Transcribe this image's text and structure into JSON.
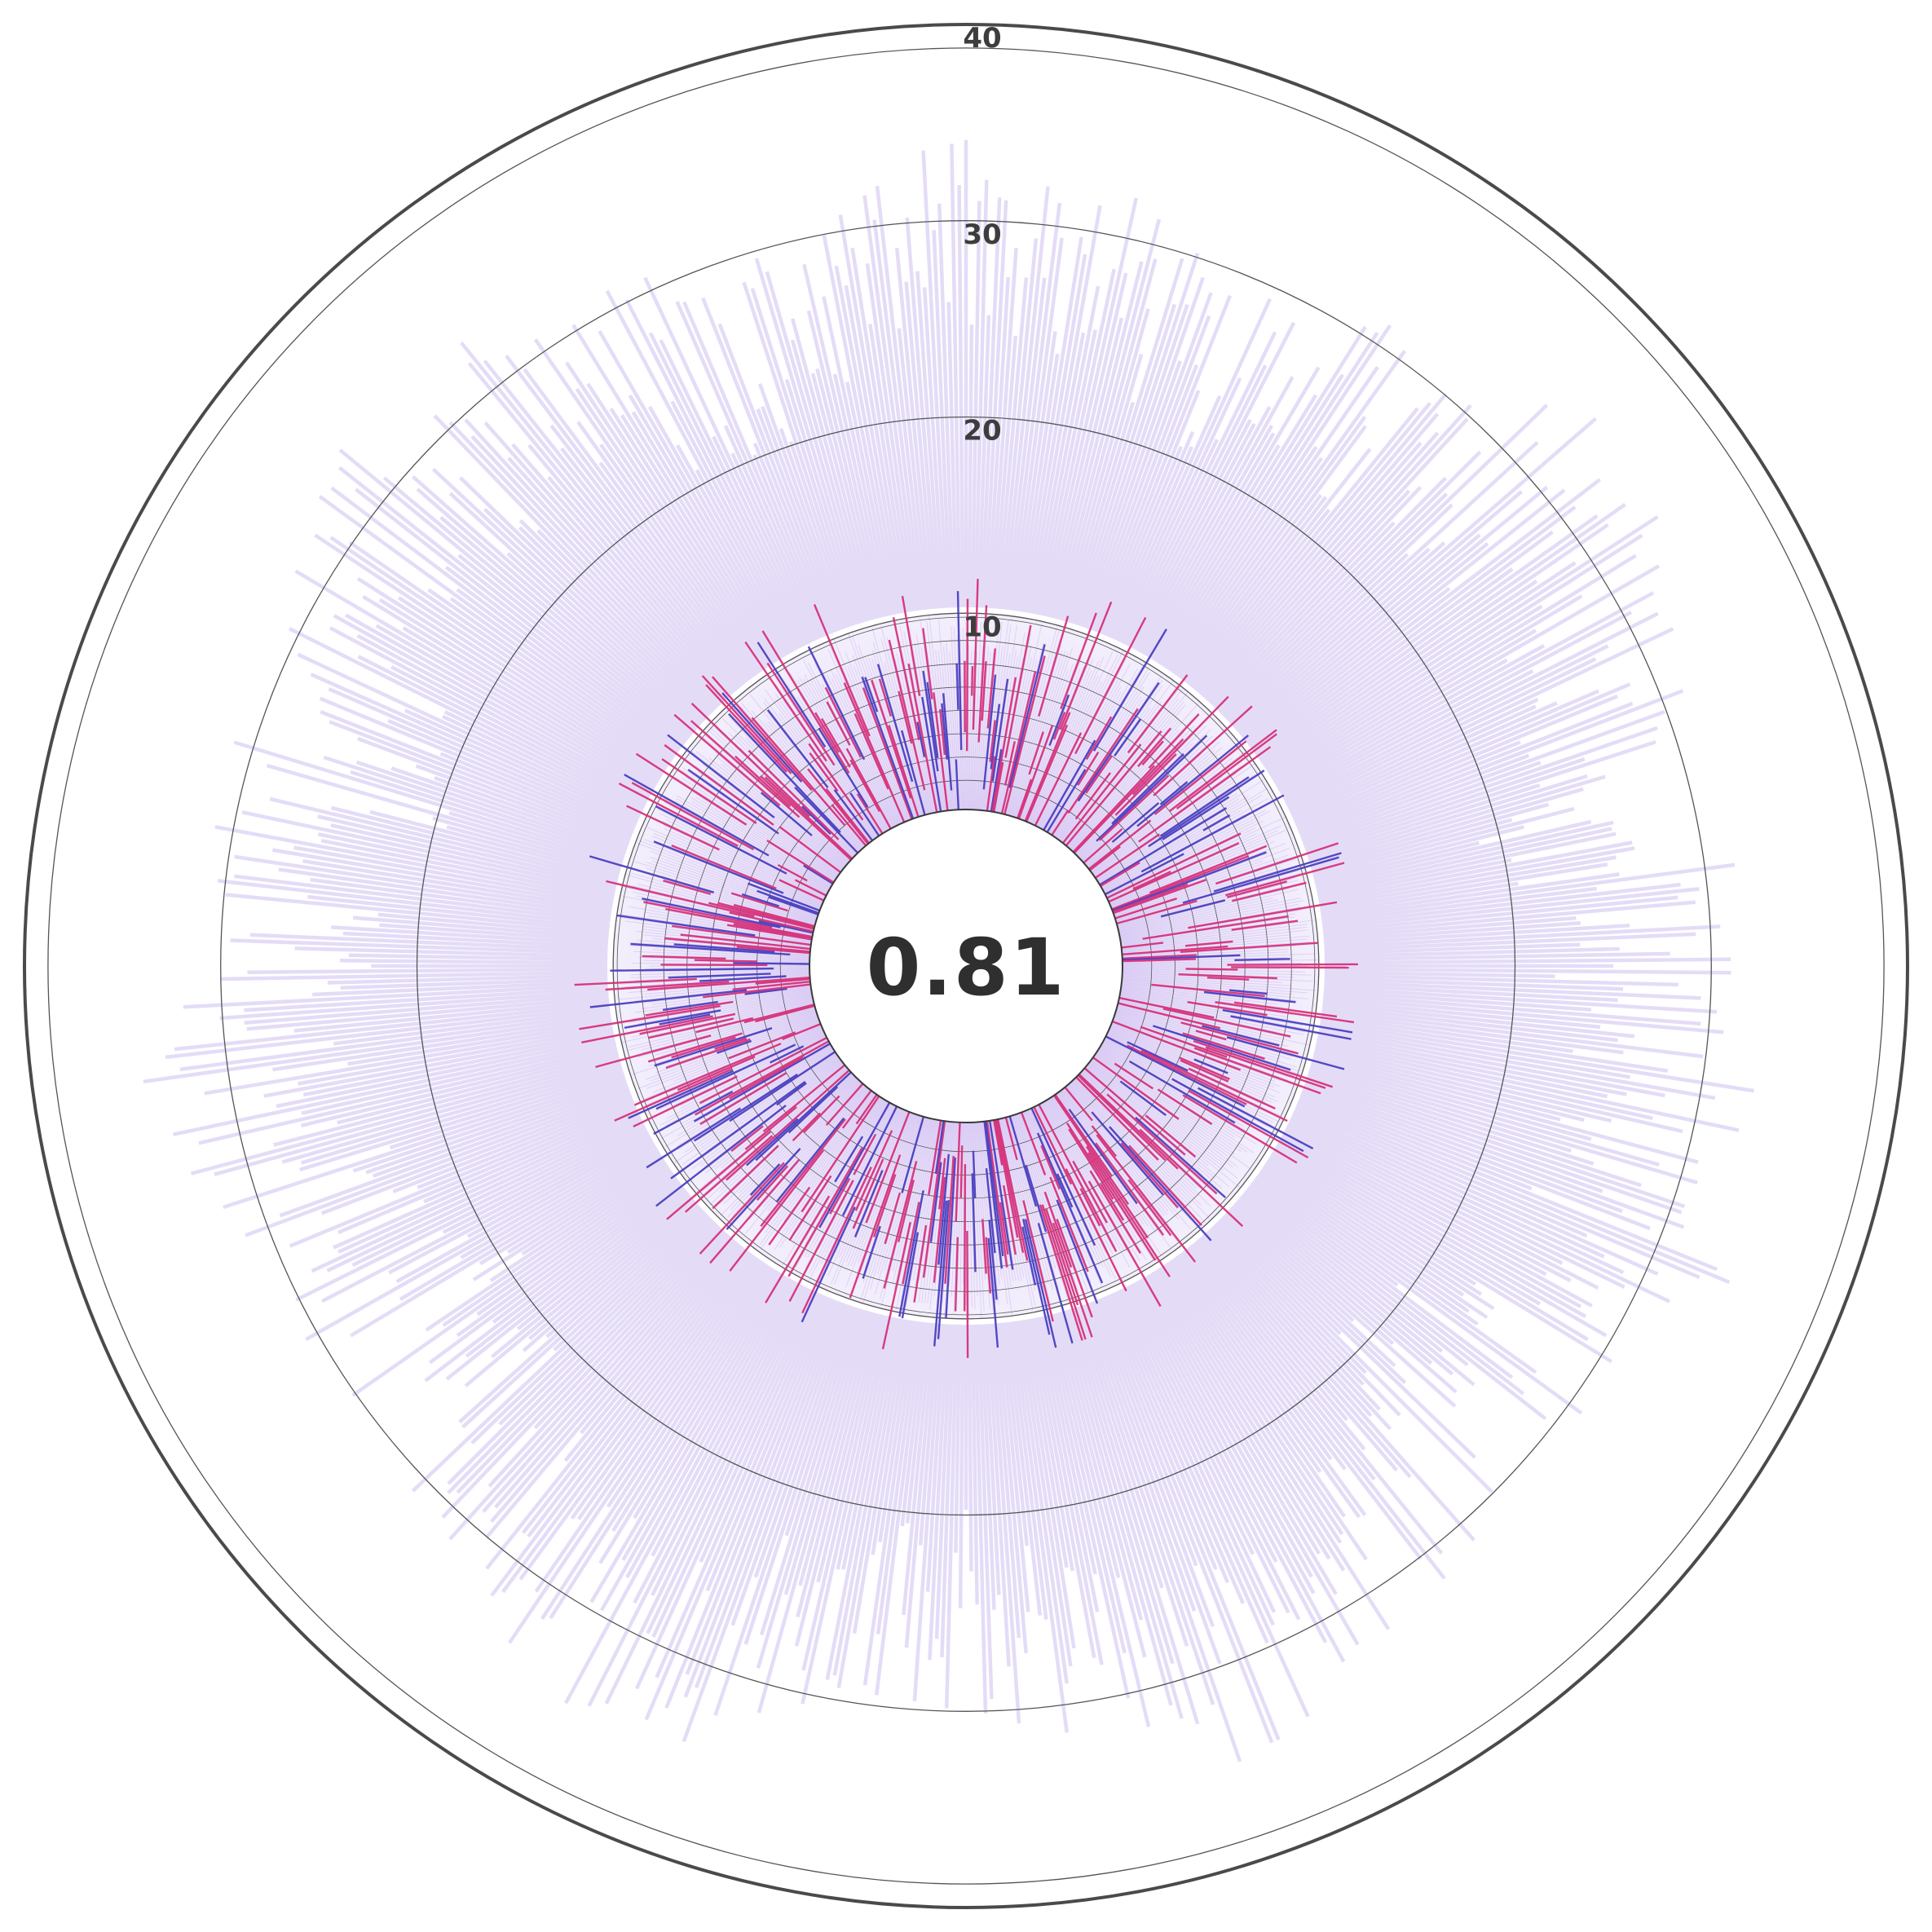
{
  "chart_data": {
    "type": "radial-bar",
    "center_value": "0.81",
    "radial_ticks": [
      "10",
      "20",
      "30",
      "40"
    ],
    "radial_tick_values": [
      10,
      20,
      30,
      40
    ],
    "rlim": [
      0,
      40
    ],
    "inner_rings": {
      "count": 8,
      "max_value": 10
    },
    "grid": true,
    "legend": "none",
    "colors": {
      "background_band": "#dcd0f5",
      "outer_bar": "#e3daf7",
      "magenta_series": "#d6317a",
      "blue_series": "#4a3fbf",
      "ring_outer": "#4a4a4a",
      "ring_grid": "#555555",
      "center_fill": "#ffffff"
    },
    "bar_count": 720,
    "series": [
      {
        "color_key": "outer_bar",
        "description_of_values": "per-angle outer extent, data units 0–40, mostly 22–36"
      },
      {
        "color_key": "magenta_series",
        "description_of_values": "per-angle line length, data units 0–12"
      },
      {
        "color_key": "blue_series",
        "description_of_values": "per-angle line length, data units 0–12"
      }
    ]
  }
}
